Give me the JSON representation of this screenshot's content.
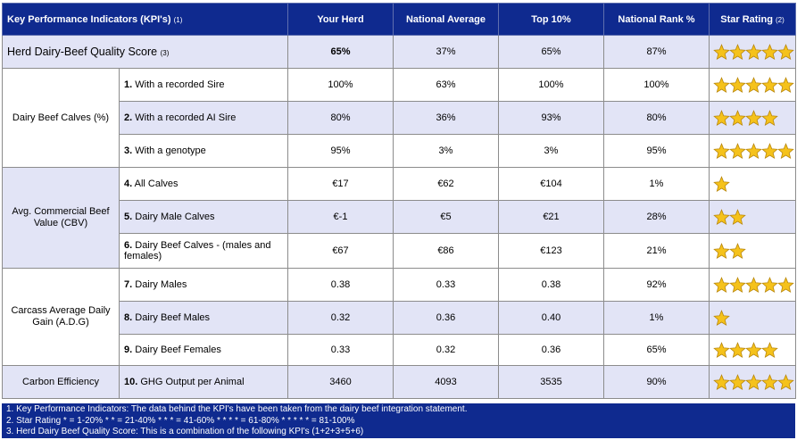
{
  "header": {
    "kpi": "Key Performance Indicators (KPI's)",
    "kpi_note": "(1)",
    "your_herd": "Your Herd",
    "national_average": "National Average",
    "top10": "Top 10%",
    "national_rank": "National Rank %",
    "star_rating": "Star Rating",
    "star_note": "(2)"
  },
  "quality": {
    "label": "Herd Dairy-Beef Quality Score",
    "note": "(3)",
    "your_herd": "65%",
    "national_average": "37%",
    "top10": "65%",
    "national_rank": "87%",
    "stars": 5
  },
  "groups": [
    {
      "label": "Dairy Beef Calves (%)",
      "rows": [
        {
          "num": "1.",
          "label": "With a recorded Sire",
          "your_herd": "100%",
          "national_average": "63%",
          "top10": "100%",
          "national_rank": "100%",
          "stars": 5
        },
        {
          "num": "2.",
          "label": "With a recorded AI Sire",
          "your_herd": "80%",
          "national_average": "36%",
          "top10": "93%",
          "national_rank": "80%",
          "stars": 4
        },
        {
          "num": "3.",
          "label": "With a genotype",
          "your_herd": "95%",
          "national_average": "3%",
          "top10": "3%",
          "national_rank": "95%",
          "stars": 5
        }
      ]
    },
    {
      "label": "Avg. Commercial Beef Value (CBV)",
      "rows": [
        {
          "num": "4.",
          "label": "All Calves",
          "your_herd": "€17",
          "national_average": "€62",
          "top10": "€104",
          "national_rank": "1%",
          "stars": 1
        },
        {
          "num": "5.",
          "label": "Dairy Male Calves",
          "your_herd": "€-1",
          "national_average": "€5",
          "top10": "€21",
          "national_rank": "28%",
          "stars": 2
        },
        {
          "num": "6.",
          "label": "Dairy Beef Calves - (males and females)",
          "your_herd": "€67",
          "national_average": "€86",
          "top10": "€123",
          "national_rank": "21%",
          "stars": 2
        }
      ]
    },
    {
      "label": "Carcass Average Daily Gain (A.D.G)",
      "rows": [
        {
          "num": "7.",
          "label": "Dairy Males",
          "your_herd": "0.38",
          "national_average": "0.33",
          "top10": "0.38",
          "national_rank": "92%",
          "stars": 5
        },
        {
          "num": "8.",
          "label": "Dairy Beef Males",
          "your_herd": "0.32",
          "national_average": "0.36",
          "top10": "0.40",
          "national_rank": "1%",
          "stars": 1
        },
        {
          "num": "9.",
          "label": "Dairy Beef Females",
          "your_herd": "0.33",
          "national_average": "0.32",
          "top10": "0.36",
          "national_rank": "65%",
          "stars": 4
        }
      ]
    },
    {
      "label": "Carbon Efficiency",
      "rows": [
        {
          "num": "10.",
          "label": "GHG Output per Animal",
          "your_herd": "3460",
          "national_average": "4093",
          "top10": "3535",
          "national_rank": "90%",
          "stars": 5
        }
      ]
    }
  ],
  "footer": [
    "1. Key Performance Indicators: The data behind the KPI's have been taken from the dairy beef integration statement.",
    "2. Star Rating * = 1-20% * * = 21-40% * * * = 41-60% * * * * = 61-80% * * * * * = 81-100%",
    "3. Herd Dairy Beef Quality Score: This is a combination of the following KPI's (1+2+3+5+6)"
  ],
  "icons": {
    "star": "star-icon"
  },
  "colors": {
    "header_bg": "#0f2a8f",
    "band_bg": "#e2e4f6",
    "star_fill": "#f5c21b"
  }
}
